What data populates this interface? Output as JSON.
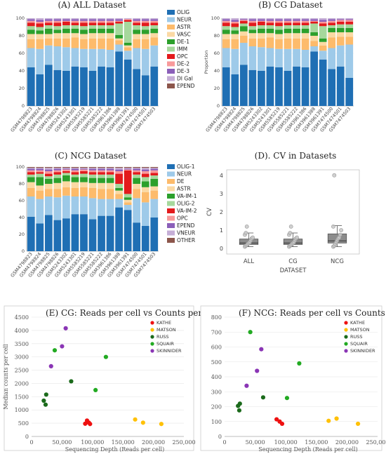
{
  "samples": [
    "GSM4798823",
    "GSM4798824",
    "GSM4798825",
    "GSM4798826",
    "GSM5243302",
    "GSM5243301",
    "GSM5585219",
    "GSM5585221",
    "GSM5585222",
    "GSM3961386",
    "GSM3961388",
    "GSM3961391",
    "GSM7474500",
    "GSM7474501",
    "GSM7474503"
  ],
  "chart_data": [
    {
      "id": "A",
      "type": "bar",
      "stacked": true,
      "title": "(A) ALL Dataset",
      "ylabel": "",
      "ylim": [
        0,
        100
      ],
      "yticks": [
        0,
        20,
        40,
        60,
        80,
        100
      ],
      "legend_position": "right",
      "categories_ref": "samples",
      "series": [
        {
          "name": "OLIG",
          "color": "#1f6fb4",
          "values": [
            44,
            36,
            47,
            41,
            40,
            45,
            44,
            40,
            45,
            44,
            62,
            53,
            42,
            35,
            45
          ]
        },
        {
          "name": "NEUR",
          "color": "#9ecae9",
          "values": [
            22,
            29,
            22,
            27,
            27,
            21,
            21,
            25,
            20,
            20,
            8,
            10,
            24,
            30,
            24
          ]
        },
        {
          "name": "ASTR",
          "color": "#fdbb6b",
          "values": [
            10,
            11,
            8,
            9,
            10,
            12,
            11,
            12,
            12,
            13,
            5,
            4,
            10,
            11,
            9
          ]
        },
        {
          "name": "VASC",
          "color": "#fbd9a4",
          "values": [
            6,
            6,
            5,
            6,
            6,
            5,
            6,
            6,
            6,
            6,
            2,
            2,
            6,
            6,
            5
          ]
        },
        {
          "name": "DE-1",
          "color": "#2ca02c",
          "values": [
            5,
            4,
            6,
            4,
            5,
            5,
            5,
            5,
            5,
            5,
            4,
            3,
            5,
            5,
            5
          ]
        },
        {
          "name": "IMM",
          "color": "#a6d89c",
          "values": [
            4,
            4,
            4,
            4,
            4,
            4,
            4,
            4,
            4,
            4,
            13,
            24,
            5,
            4,
            4
          ]
        },
        {
          "name": "OPC",
          "color": "#e31a1c",
          "values": [
            4,
            4,
            3,
            4,
            4,
            3,
            4,
            3,
            3,
            3,
            2,
            2,
            3,
            4,
            3
          ]
        },
        {
          "name": "DE-2",
          "color": "#f89a9b",
          "values": [
            2,
            2,
            2,
            2,
            1,
            2,
            2,
            2,
            2,
            2,
            1,
            1,
            2,
            2,
            2
          ]
        },
        {
          "name": "DE-3",
          "color": "#8b5fb9",
          "values": [
            2,
            2,
            2,
            2,
            2,
            2,
            2,
            2,
            2,
            2,
            2,
            0,
            2,
            2,
            2
          ]
        },
        {
          "name": "DI Gal",
          "color": "#c5aed6",
          "values": [
            1,
            2,
            1,
            1,
            1,
            1,
            1,
            1,
            1,
            1,
            1,
            1,
            1,
            1,
            1
          ]
        },
        {
          "name": "EPEND",
          "color": "#8c564b",
          "values": [
            0,
            0,
            0,
            0,
            0,
            0,
            0,
            0,
            0,
            0,
            0,
            0,
            0,
            0,
            0
          ]
        }
      ]
    },
    {
      "id": "B",
      "type": "bar",
      "stacked": true,
      "title": "(B) CG Dataset",
      "ylabel": "Proportion",
      "ylim": [
        0,
        100
      ],
      "yticks": [
        0,
        20,
        40,
        60,
        80,
        100
      ],
      "categories_ref": "samples",
      "series": [
        {
          "name": "OLIG",
          "color": "#1f6fb4",
          "values": [
            44,
            36,
            47,
            41,
            40,
            45,
            44,
            40,
            45,
            44,
            62,
            53,
            42,
            45,
            32
          ]
        },
        {
          "name": "NEUR",
          "color": "#9ecae9",
          "values": [
            22,
            29,
            25,
            27,
            27,
            21,
            21,
            25,
            20,
            20,
            6,
            10,
            24,
            24,
            38
          ]
        },
        {
          "name": "ASTR",
          "color": "#fdbb6b",
          "values": [
            10,
            11,
            8,
            9,
            10,
            12,
            11,
            12,
            12,
            13,
            6,
            6,
            12,
            10,
            9
          ]
        },
        {
          "name": "VASC",
          "color": "#fbd9a4",
          "values": [
            6,
            6,
            5,
            6,
            6,
            5,
            6,
            6,
            6,
            6,
            6,
            4,
            6,
            5,
            5
          ]
        },
        {
          "name": "DE-1",
          "color": "#2ca02c",
          "values": [
            5,
            4,
            6,
            4,
            5,
            5,
            5,
            5,
            5,
            5,
            4,
            4,
            5,
            5,
            5
          ]
        },
        {
          "name": "IMM",
          "color": "#a6d89c",
          "values": [
            4,
            4,
            3,
            4,
            4,
            4,
            4,
            4,
            4,
            4,
            10,
            14,
            3,
            4,
            4
          ]
        },
        {
          "name": "OPC",
          "color": "#e31a1c",
          "values": [
            4,
            4,
            3,
            4,
            4,
            3,
            4,
            3,
            3,
            3,
            2,
            3,
            3,
            3,
            3
          ]
        },
        {
          "name": "DE-2",
          "color": "#f89a9b",
          "values": [
            2,
            2,
            1,
            2,
            1,
            2,
            2,
            2,
            2,
            2,
            1,
            2,
            2,
            2,
            2
          ]
        },
        {
          "name": "DE-3",
          "color": "#8b5fb9",
          "values": [
            2,
            2,
            1,
            2,
            2,
            2,
            2,
            2,
            2,
            2,
            2,
            2,
            2,
            1,
            1
          ]
        },
        {
          "name": "DI Gal",
          "color": "#c5aed6",
          "values": [
            1,
            2,
            1,
            1,
            1,
            1,
            1,
            1,
            1,
            1,
            1,
            2,
            1,
            1,
            1
          ]
        }
      ]
    },
    {
      "id": "C",
      "type": "bar",
      "stacked": true,
      "title": "(C) NCG Dataset",
      "ylabel": "",
      "ylim": [
        0,
        100
      ],
      "yticks": [
        0,
        20,
        40,
        60,
        80,
        100
      ],
      "legend_position": "right",
      "categories_ref": "samples",
      "series": [
        {
          "name": "OLIG-1",
          "color": "#1f6fb4",
          "values": [
            41,
            33,
            43,
            37,
            39,
            44,
            44,
            38,
            42,
            42,
            52,
            49,
            34,
            30,
            40
          ]
        },
        {
          "name": "NEUR",
          "color": "#9ecae9",
          "values": [
            24,
            29,
            22,
            27,
            27,
            21,
            21,
            25,
            20,
            20,
            10,
            6,
            29,
            28,
            22
          ]
        },
        {
          "name": "DE",
          "color": "#fdbb6b",
          "values": [
            10,
            10,
            9,
            10,
            10,
            10,
            11,
            12,
            12,
            12,
            6,
            3,
            11,
            12,
            10
          ]
        },
        {
          "name": "ASTR",
          "color": "#fbd9a4",
          "values": [
            7,
            6,
            6,
            7,
            7,
            7,
            6,
            6,
            7,
            7,
            4,
            3,
            6,
            6,
            5
          ]
        },
        {
          "name": "VA-IM-1",
          "color": "#2ca02c",
          "values": [
            6,
            10,
            6,
            6,
            7,
            6,
            6,
            6,
            6,
            6,
            3,
            3,
            7,
            7,
            9
          ]
        },
        {
          "name": "OLIG-2",
          "color": "#a6d89c",
          "values": [
            3,
            4,
            3,
            4,
            3,
            3,
            4,
            4,
            4,
            4,
            5,
            4,
            4,
            5,
            4
          ]
        },
        {
          "name": "VA-IM-2",
          "color": "#e31a1c",
          "values": [
            3,
            2,
            3,
            3,
            2,
            3,
            3,
            3,
            3,
            3,
            12,
            28,
            3,
            4,
            3
          ]
        },
        {
          "name": "OPC",
          "color": "#f89a9b",
          "values": [
            2,
            2,
            3,
            2,
            2,
            2,
            2,
            2,
            2,
            2,
            3,
            1,
            2,
            3,
            3
          ]
        },
        {
          "name": "EPEND",
          "color": "#8b5fb9",
          "values": [
            2,
            2,
            2,
            2,
            1,
            2,
            1,
            2,
            2,
            2,
            2,
            1,
            2,
            2,
            2
          ]
        },
        {
          "name": "VNEUR",
          "color": "#c5aed6",
          "values": [
            1,
            1,
            2,
            1,
            1,
            1,
            1,
            1,
            1,
            1,
            2,
            1,
            1,
            2,
            1
          ]
        },
        {
          "name": "OTHER",
          "color": "#8c564b",
          "values": [
            1,
            1,
            1,
            1,
            1,
            1,
            1,
            1,
            1,
            1,
            1,
            1,
            1,
            1,
            1
          ]
        }
      ]
    },
    {
      "id": "D",
      "type": "box",
      "title": "(D). CV in Datasets",
      "xlabel": "DATASET",
      "ylabel": "CV",
      "ylim": [
        -0.3,
        4.3
      ],
      "yticks": [
        0,
        1,
        2,
        3,
        4
      ],
      "categories": [
        "ALL",
        "CG",
        "NCG"
      ],
      "boxes": [
        {
          "q1": 0.22,
          "median": 0.3,
          "q3": 0.52,
          "whisker_low": 0.1,
          "whisker_high": 0.85,
          "points": [
            0.1,
            0.15,
            0.2,
            0.25,
            0.3,
            0.35,
            0.45,
            0.55,
            0.6,
            0.75,
            0.85,
            1.2
          ]
        },
        {
          "q1": 0.22,
          "median": 0.3,
          "q3": 0.52,
          "whisker_low": 0.1,
          "whisker_high": 0.85,
          "points": [
            0.1,
            0.15,
            0.2,
            0.25,
            0.3,
            0.35,
            0.45,
            0.55,
            0.6,
            0.75,
            0.85,
            1.2
          ]
        },
        {
          "q1": 0.3,
          "median": 0.42,
          "q3": 0.8,
          "whisker_low": 0.1,
          "whisker_high": 1.25,
          "points": [
            0.1,
            0.15,
            0.25,
            0.35,
            0.45,
            0.55,
            0.6,
            0.75,
            1.0,
            1.2,
            4.0
          ]
        }
      ]
    },
    {
      "id": "E",
      "type": "scatter",
      "title": "(E)  CG: Reads per cell vs Counts per cell",
      "xlabel": "Sequencing Depth (Reads per cell)",
      "ylabel": "Median counts per cell",
      "xlim": [
        0,
        250000
      ],
      "ylim": [
        0,
        4500
      ],
      "xticks": [
        0,
        50000,
        100000,
        150000,
        200000,
        250000
      ],
      "xtick_labels": [
        "0",
        "50,000",
        "100,000",
        "150,000",
        "200,000",
        "250,000"
      ],
      "yticks": [
        0,
        500,
        1000,
        1500,
        2000,
        2500,
        3000,
        3500,
        4000,
        4500
      ],
      "legend_position": "top-right",
      "series": [
        {
          "name": "KATHE",
          "color": "#ee1111",
          "points": [
            [
              88000,
              480
            ],
            [
              91000,
              600
            ],
            [
              94000,
              520
            ],
            [
              96000,
              470
            ]
          ]
        },
        {
          "name": "MATSON",
          "color": "#ffc107",
          "points": [
            [
              170000,
              640
            ],
            [
              183000,
              520
            ],
            [
              213000,
              470
            ]
          ]
        },
        {
          "name": "RUSS",
          "color": "#1b6a1b",
          "points": [
            [
              20000,
              1350
            ],
            [
              23000,
              1200
            ],
            [
              24000,
              1580
            ],
            [
              65000,
              2080
            ]
          ]
        },
        {
          "name": "SQUAIR",
          "color": "#22aa22",
          "points": [
            [
              38000,
              3250
            ],
            [
              105000,
              1750
            ],
            [
              122000,
              3000
            ]
          ]
        },
        {
          "name": "SKINNIDER",
          "color": "#8a35b5",
          "points": [
            [
              32000,
              2650
            ],
            [
              50000,
              3400
            ],
            [
              56000,
              4080
            ]
          ]
        }
      ]
    },
    {
      "id": "F",
      "type": "scatter",
      "title": "(F) NCG: Reads per cell vs Counts per cell",
      "xlabel": "Sequencing Depth (Reads per cell)",
      "ylabel": "",
      "xlim": [
        0,
        250000
      ],
      "ylim": [
        0,
        800
      ],
      "xticks": [
        0,
        50000,
        100000,
        150000,
        200000,
        250000
      ],
      "xtick_labels": [
        "0",
        "50,000",
        "100,000",
        "150,000",
        "200,000",
        "250,000"
      ],
      "yticks": [
        0,
        100,
        200,
        300,
        400,
        500,
        600,
        700,
        800
      ],
      "legend_position": "top-right",
      "series": [
        {
          "name": "KATHE",
          "color": "#ee1111",
          "points": [
            [
              85000,
              115
            ],
            [
              90000,
              100
            ],
            [
              94000,
              85
            ]
          ]
        },
        {
          "name": "MATSON",
          "color": "#ffc107",
          "points": [
            [
              170000,
              105
            ],
            [
              183000,
              120
            ],
            [
              218000,
              85
            ]
          ]
        },
        {
          "name": "RUSS",
          "color": "#1b6a1b",
          "points": [
            [
              22000,
              205
            ],
            [
              25000,
              220
            ],
            [
              24000,
              175
            ],
            [
              63000,
              262
            ]
          ]
        },
        {
          "name": "SQUAIR",
          "color": "#22aa22",
          "points": [
            [
              42000,
              700
            ],
            [
              102000,
              258
            ],
            [
              122000,
              490
            ]
          ]
        },
        {
          "name": "SKINNIDER",
          "color": "#8a35b5",
          "points": [
            [
              36000,
              340
            ],
            [
              53000,
              440
            ],
            [
              60000,
              585
            ]
          ]
        }
      ]
    }
  ]
}
